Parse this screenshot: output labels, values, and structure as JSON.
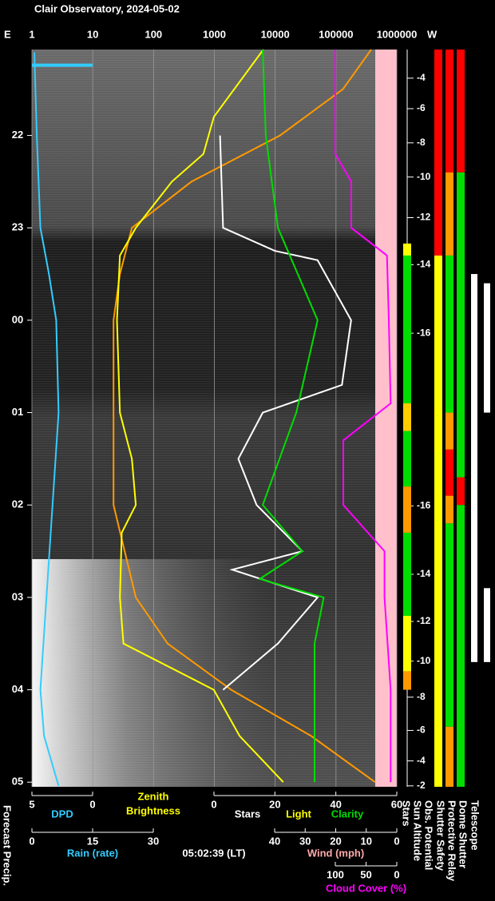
{
  "title": "Clair Observatory, 2024-05-02",
  "left_corner": "E",
  "right_corner": "W",
  "brightness_title": [
    "Zenith",
    "Brightness"
  ],
  "light_label": "Light",
  "time_label": "05:02:39 (LT)",
  "forecast_label": "Forecast Precip.",
  "chart_data": {
    "type": "line",
    "xscale": "log",
    "xlim": [
      1,
      1000000
    ],
    "xticks": [
      1,
      10,
      100,
      1000,
      10000,
      100000,
      1000000
    ],
    "ylim": [
      21.07,
      29.05
    ],
    "yticks": [
      22,
      23,
      {
        "value": 24,
        "label": "00"
      },
      {
        "value": 25,
        "label": "01"
      },
      {
        "value": 26,
        "label": "02"
      },
      {
        "value": 27,
        "label": "03"
      },
      {
        "value": 28,
        "label": "04"
      },
      {
        "value": 29,
        "label": "05"
      }
    ],
    "grid": true,
    "scales": {
      "stars": {
        "lim": [
          0,
          60
        ],
        "ticks": [
          0,
          20,
          40,
          60
        ]
      },
      "dpd": {
        "lim": [
          5,
          0
        ],
        "ticks": [
          5,
          0
        ]
      },
      "rain": {
        "lim": [
          0,
          30
        ],
        "ticks": [
          0,
          15,
          30
        ],
        "title": "Rain (rate)"
      },
      "wind": {
        "lim": [
          40,
          0
        ],
        "ticks": [
          40,
          30,
          20,
          10,
          0
        ],
        "title": "Wind (mph)"
      },
      "cloud": {
        "lim": [
          100,
          0
        ],
        "ticks": [
          100,
          50,
          0
        ],
        "title": "Cloud Cover (%)"
      }
    },
    "series": [
      {
        "color": "#ff9900",
        "axis": "x",
        "time": [
          21.07,
          21.5,
          22.0,
          22.5,
          23.0,
          23.5,
          24.0,
          25.0,
          26.0,
          27.0,
          27.5,
          28.0,
          28.5,
          29.0
        ],
        "values": [
          380000,
          130000,
          12000,
          420,
          44,
          28,
          22,
          22,
          22,
          51,
          170,
          1900,
          39000,
          440000
        ]
      },
      {
        "color": "#ffff00",
        "axis": "x",
        "time": [
          21.07,
          21.8,
          22.2,
          22.5,
          23.0,
          23.3,
          24.0,
          25.0,
          25.5,
          26.0,
          26.3,
          27.0,
          27.5,
          28.0,
          28.5,
          29.0
        ],
        "values": [
          6400,
          980,
          660,
          200,
          51,
          28,
          25,
          28,
          44,
          51,
          30,
          28,
          32,
          980,
          2600,
          13600
        ]
      },
      {
        "name": "Stars",
        "color": "#ffffff",
        "axis": "stars",
        "time": [
          22.0,
          23.0,
          23.25,
          23.35,
          24.0,
          24.7,
          25.0,
          25.5,
          26.0,
          26.5,
          26.7,
          27.0,
          27.5,
          28.0
        ],
        "values": [
          2,
          3,
          20,
          34,
          45,
          42,
          16,
          8,
          14,
          29,
          6,
          34,
          21,
          3
        ]
      },
      {
        "name": "Clarity",
        "color": "#00dd00",
        "axis": "stars",
        "time": [
          21.07,
          22.0,
          23.0,
          24.0,
          25.0,
          26.0,
          26.5,
          26.8,
          27.0,
          27.5,
          28.0,
          29.0
        ],
        "values": [
          16,
          17,
          21,
          34,
          27,
          16,
          29,
          15,
          36,
          33,
          33,
          33
        ]
      },
      {
        "color": "#ff00ff",
        "axis": "cloud",
        "time": [
          21.07,
          22.2,
          22.5,
          23.0,
          23.3,
          24.0,
          24.9,
          25.3,
          26.0,
          26.5,
          27.0,
          28.0,
          29.0
        ],
        "values": [
          100,
          100,
          74,
          74,
          16,
          13,
          10,
          87,
          87,
          20,
          20,
          10,
          10
        ]
      },
      {
        "name": "DPD",
        "color": "#33ccff",
        "axis": "dpd",
        "time": [
          21.1,
          22,
          23,
          23.5,
          24,
          25,
          26,
          27,
          28,
          28.5,
          29.04
        ],
        "values": [
          4.8,
          4.6,
          4.3,
          3.6,
          3.0,
          2.8,
          3.3,
          3.8,
          4.3,
          4.0,
          2.8
        ]
      }
    ],
    "rain_marker": {
      "time": 21.24,
      "value": 15,
      "color": "#33ccff"
    },
    "sun_altitude": {
      "name": "Sun Altitude",
      "ticks": [
        {
          "time": 21.38,
          "altitude": -4
        },
        {
          "time": 21.71,
          "altitude": -6
        },
        {
          "time": 22.08,
          "altitude": -8
        },
        {
          "time": 22.45,
          "altitude": -10
        },
        {
          "time": 22.89,
          "altitude": -12
        },
        {
          "time": 23.4,
          "altitude": -14
        },
        {
          "time": 24.14,
          "altitude": -16
        },
        {
          "time": 26.01,
          "altitude": -16
        },
        {
          "time": 26.75,
          "altitude": -14
        },
        {
          "time": 27.26,
          "altitude": -12
        },
        {
          "time": 27.69,
          "altitude": -10
        },
        {
          "time": 28.08,
          "altitude": -8
        },
        {
          "time": 28.44,
          "altitude": -6
        },
        {
          "time": 28.77,
          "altitude": -4
        },
        {
          "time": 29.04,
          "altitude": -2
        }
      ]
    },
    "status": [
      {
        "name": "Stars",
        "segments": [
          {
            "from": 23.17,
            "to": 23.3,
            "color": "#ffff00"
          },
          {
            "from": 23.3,
            "to": 24.9,
            "color": "#00dd00"
          },
          {
            "from": 24.9,
            "to": 25.2,
            "color": "#ffcc00"
          },
          {
            "from": 25.2,
            "to": 25.8,
            "color": "#00dd00"
          },
          {
            "from": 25.8,
            "to": 26.3,
            "color": "#ff9900"
          },
          {
            "from": 26.3,
            "to": 27.2,
            "color": "#00dd00"
          },
          {
            "from": 27.2,
            "to": 27.8,
            "color": "#ffff00"
          },
          {
            "from": 27.8,
            "to": 28.0,
            "color": "#ff9900"
          }
        ]
      },
      {
        "name": "Obs. Potential",
        "segments": [
          {
            "from": 21.07,
            "to": 23.3,
            "color": "#ff0000"
          },
          {
            "from": 23.3,
            "to": 29.05,
            "color": "#ffff00"
          }
        ]
      },
      {
        "name": "Shutter Safety",
        "segments": [
          {
            "from": 21.07,
            "to": 22.4,
            "color": "#ff0000"
          },
          {
            "from": 22.4,
            "to": 23.3,
            "color": "#ff9900"
          },
          {
            "from": 23.3,
            "to": 25.0,
            "color": "#00dd00"
          },
          {
            "from": 25.0,
            "to": 25.4,
            "color": "#ff9900"
          },
          {
            "from": 25.4,
            "to": 25.9,
            "color": "#ff0000"
          },
          {
            "from": 25.9,
            "to": 26.2,
            "color": "#ff9900"
          },
          {
            "from": 26.2,
            "to": 28.4,
            "color": "#00dd00"
          },
          {
            "from": 28.4,
            "to": 29.05,
            "color": "#ff9900"
          }
        ]
      },
      {
        "name": "Protective Relay",
        "segments": [
          {
            "from": 21.07,
            "to": 22.4,
            "color": "#ff0000"
          },
          {
            "from": 22.4,
            "to": 25.7,
            "color": "#00dd00"
          },
          {
            "from": 25.7,
            "to": 26.0,
            "color": "#ff0000"
          },
          {
            "from": 26.0,
            "to": 29.05,
            "color": "#00dd00"
          }
        ]
      },
      {
        "name": "Dome Shutter",
        "segments": [
          {
            "from": 23.5,
            "to": 27.7,
            "color": "#ffffff"
          }
        ]
      },
      {
        "name": "Telescope",
        "segments": [
          {
            "from": 23.6,
            "to": 25.0,
            "color": "#ffffff"
          },
          {
            "from": 26.9,
            "to": 27.7,
            "color": "#ffffff"
          }
        ]
      }
    ]
  }
}
